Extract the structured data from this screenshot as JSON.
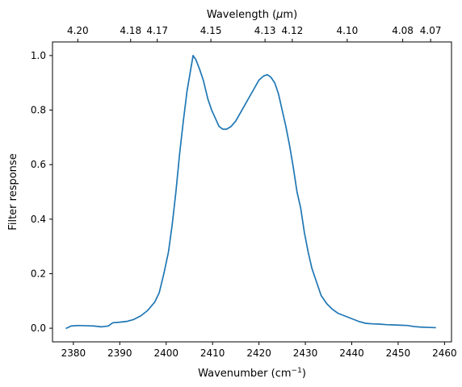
{
  "chart_data": {
    "type": "line",
    "xlabel": "Wavenumber (cm",
    "xlabel_sup": "−1",
    "xlabel_end": ")",
    "ylabel": "Filter response",
    "top_axis_label": "Wavelength (",
    "top_axis_label_mu": "μ",
    "top_axis_label_end": "m)",
    "xlim": [
      2375.5,
      2461.5
    ],
    "ylim": [
      -0.05,
      1.05
    ],
    "x_ticks": [
      2380,
      2390,
      2400,
      2410,
      2420,
      2430,
      2440,
      2450,
      2460
    ],
    "y_ticks": [
      0.0,
      0.2,
      0.4,
      0.6,
      0.8,
      1.0
    ],
    "y_tick_labels": [
      "0.0",
      "0.2",
      "0.4",
      "0.6",
      "0.8",
      "1.0"
    ],
    "top_ticks": [
      {
        "label": "4.20",
        "wavenumber": 2380.95
      },
      {
        "label": "4.18",
        "wavenumber": 2392.34
      },
      {
        "label": "4.17",
        "wavenumber": 2398.08
      },
      {
        "label": "4.15",
        "wavenumber": 2409.64
      },
      {
        "label": "4.13",
        "wavenumber": 2421.31
      },
      {
        "label": "4.12",
        "wavenumber": 2427.18
      },
      {
        "label": "4.10",
        "wavenumber": 2439.02
      },
      {
        "label": "4.08",
        "wavenumber": 2450.98
      },
      {
        "label": "4.07",
        "wavenumber": 2457.0
      }
    ],
    "grid": false,
    "series": [
      {
        "color": "#1f77b4",
        "x": [
          2378.5,
          2379.5,
          2381,
          2383,
          2384.5,
          2386,
          2387.5,
          2388.5,
          2390,
          2391.5,
          2393,
          2394.5,
          2396,
          2397.5,
          2398.5,
          2399.5,
          2400.5,
          2401.3,
          2402.1,
          2402.9,
          2403.7,
          2404.5,
          2405.2,
          2405.8,
          2406.4,
          2407.2,
          2408,
          2409,
          2409.8,
          2410.6,
          2411.4,
          2412.2,
          2413,
          2414,
          2415,
          2416,
          2417,
          2418,
          2419,
          2420,
          2421,
          2421.8,
          2422.6,
          2423.4,
          2424.2,
          2425,
          2425.8,
          2426.6,
          2427.4,
          2428.2,
          2429,
          2429.8,
          2430.6,
          2431.4,
          2432.2,
          2433.4,
          2434.6,
          2435.8,
          2437,
          2438.5,
          2440,
          2441.5,
          2443,
          2444.5,
          2446,
          2447.5,
          2449,
          2450.5,
          2452,
          2453.5,
          2455,
          2456.5,
          2458
        ],
        "y": [
          0.0,
          0.008,
          0.01,
          0.009,
          0.008,
          0.005,
          0.008,
          0.02,
          0.022,
          0.025,
          0.032,
          0.045,
          0.065,
          0.095,
          0.13,
          0.2,
          0.28,
          0.38,
          0.5,
          0.64,
          0.76,
          0.87,
          0.94,
          1.0,
          0.985,
          0.95,
          0.91,
          0.84,
          0.8,
          0.77,
          0.74,
          0.73,
          0.73,
          0.74,
          0.76,
          0.79,
          0.82,
          0.85,
          0.88,
          0.91,
          0.925,
          0.93,
          0.92,
          0.9,
          0.86,
          0.8,
          0.74,
          0.67,
          0.59,
          0.5,
          0.44,
          0.35,
          0.28,
          0.22,
          0.18,
          0.12,
          0.09,
          0.07,
          0.055,
          0.045,
          0.035,
          0.025,
          0.018,
          0.016,
          0.015,
          0.013,
          0.012,
          0.011,
          0.01,
          0.006,
          0.004,
          0.003,
          0.002
        ]
      }
    ]
  }
}
